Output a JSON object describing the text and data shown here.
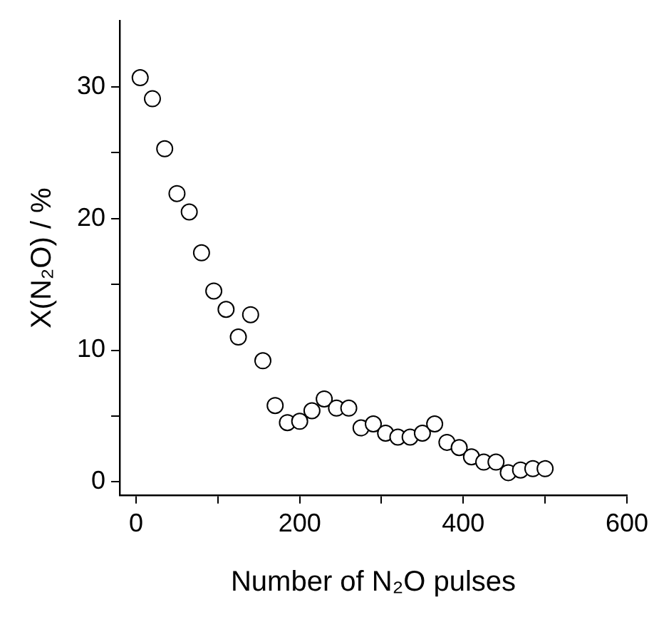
{
  "chart_data": {
    "type": "scatter",
    "xlabel": "Number of N₂O pulses",
    "ylabel": "X(N₂O) / %",
    "x": [
      5,
      20,
      35,
      50,
      65,
      80,
      95,
      110,
      125,
      140,
      155,
      170,
      185,
      200,
      215,
      230,
      245,
      260,
      275,
      290,
      305,
      320,
      335,
      350,
      365,
      380,
      395,
      410,
      425,
      440,
      455,
      470,
      485,
      500
    ],
    "values": [
      30.7,
      29.1,
      25.3,
      21.9,
      20.5,
      17.4,
      14.5,
      13.1,
      11.0,
      12.7,
      9.2,
      5.8,
      4.5,
      4.6,
      5.4,
      6.3,
      5.6,
      5.6,
      4.1,
      4.4,
      3.7,
      3.4,
      3.4,
      3.7,
      4.4,
      3.0,
      2.6,
      1.9,
      1.5,
      1.5,
      0.7,
      0.9,
      1.0,
      1.0
    ],
    "color": "#000000",
    "marker": "circle",
    "xlim": [
      -20,
      600
    ],
    "xticks": [
      0,
      {
        "value": 100,
        "label": null
      },
      200,
      {
        "value": 300,
        "label": null
      },
      400,
      {
        "value": 500,
        "label": null
      },
      600
    ],
    "ylim": [
      -1,
      35
    ],
    "yticks": [
      0,
      {
        "value": 5,
        "label": null
      },
      10,
      {
        "value": 15,
        "label": null
      },
      20,
      {
        "value": 25,
        "label": null
      },
      30
    ],
    "grid": false,
    "legend": false
  }
}
